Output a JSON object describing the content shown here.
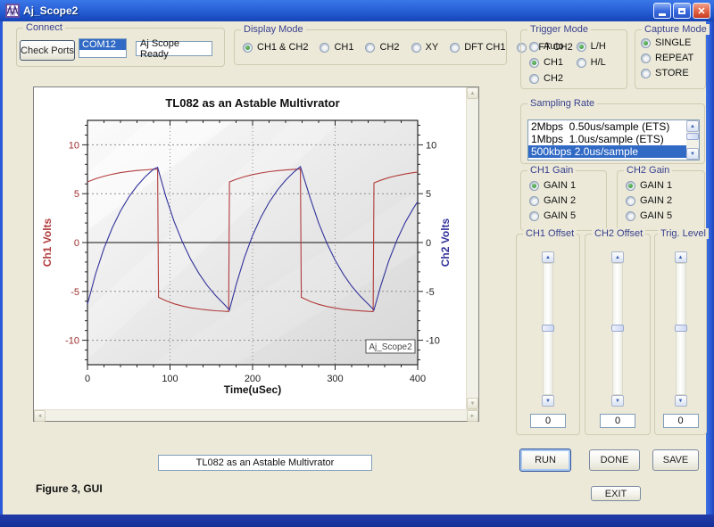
{
  "window": {
    "title": "Aj_Scope2",
    "controls": {
      "minimize": "minimize",
      "maximize": "maximize",
      "close": "close"
    }
  },
  "connect": {
    "label": "Connect",
    "button_label": "Check Ports",
    "port_selected": "COM12",
    "status_text": "Aj Scope Ready"
  },
  "display_mode": {
    "label": "Display Mode",
    "options": [
      {
        "label": "CH1 & CH2",
        "selected": true
      },
      {
        "label": "CH1",
        "selected": false
      },
      {
        "label": "CH2",
        "selected": false
      },
      {
        "label": "XY",
        "selected": false
      },
      {
        "label": "DFT CH1",
        "selected": false
      },
      {
        "label": "DFT CH2",
        "selected": false
      }
    ]
  },
  "trigger_mode": {
    "label": "Trigger Mode",
    "options": [
      {
        "label": "Auto",
        "selected": false
      },
      {
        "label": "CH1",
        "selected": true
      },
      {
        "label": "CH2",
        "selected": false
      }
    ],
    "edge_options": [
      {
        "label": "L/H",
        "selected": true
      },
      {
        "label": "H/L",
        "selected": false
      }
    ]
  },
  "capture_mode": {
    "label": "Capture Mode",
    "options": [
      {
        "label": "SINGLE",
        "selected": true
      },
      {
        "label": "REPEAT",
        "selected": false
      },
      {
        "label": "STORE",
        "selected": false
      }
    ]
  },
  "sampling_rate": {
    "label": "Sampling Rate",
    "options": [
      "2Mbps  0.50us/sample (ETS)",
      "1Mbps  1.0us/sample (ETS)",
      "500kbps 2.0us/sample"
    ],
    "selected_index": 2
  },
  "ch1_gain": {
    "label": "CH1 Gain",
    "options": [
      {
        "label": "GAIN 1",
        "selected": true
      },
      {
        "label": "GAIN 2",
        "selected": false
      },
      {
        "label": "GAIN 5",
        "selected": false
      }
    ]
  },
  "ch2_gain": {
    "label": "CH2 Gain",
    "options": [
      {
        "label": "GAIN 1",
        "selected": true
      },
      {
        "label": "GAIN 2",
        "selected": false
      },
      {
        "label": "GAIN 5",
        "selected": false
      }
    ]
  },
  "sliders": [
    {
      "label": "CH1 Offset",
      "value": "0"
    },
    {
      "label": "CH2 Offset",
      "value": "0"
    },
    {
      "label": "Trig. Level",
      "value": "0"
    }
  ],
  "actions": {
    "run_label": "RUN",
    "done_label": "DONE",
    "save_label": "SAVE",
    "exit_label": "EXIT"
  },
  "footer": {
    "title_field_value": "TL082 as an Astable Multivrator",
    "caption": "Figure 3, GUI"
  },
  "chart_data": {
    "type": "line",
    "title": "TL082 as an Astable Multivrator",
    "xlabel": "Time(uSec)",
    "ylabel_left": "Ch1 Volts",
    "ylabel_right": "Ch2 Volts",
    "legend": "Aj_Scope2",
    "xlim": [
      0,
      400
    ],
    "ylim": [
      -12.5,
      12.5
    ],
    "xticks": [
      0,
      100,
      200,
      300,
      400
    ],
    "yticks": [
      -10,
      -5,
      0,
      5,
      10
    ],
    "grid": true,
    "axis_colors": {
      "left": "#a03030",
      "right": "#222222"
    },
    "series": [
      {
        "name": "Ch1",
        "color": "#b23b3b",
        "points": [
          [
            0,
            6.2
          ],
          [
            10,
            6.53
          ],
          [
            20,
            6.79
          ],
          [
            30,
            6.99
          ],
          [
            40,
            7.15
          ],
          [
            50,
            7.27
          ],
          [
            60,
            7.37
          ],
          [
            70,
            7.44
          ],
          [
            80,
            7.5
          ],
          [
            85,
            7.52
          ],
          [
            86,
            -5.6
          ],
          [
            95,
            -5.96
          ],
          [
            105,
            -6.27
          ],
          [
            115,
            -6.5
          ],
          [
            125,
            -6.68
          ],
          [
            135,
            -6.8
          ],
          [
            145,
            -6.9
          ],
          [
            155,
            -6.98
          ],
          [
            165,
            -7.03
          ],
          [
            171,
            -7.06
          ],
          [
            172,
            6.2
          ],
          [
            180,
            6.47
          ],
          [
            190,
            6.74
          ],
          [
            200,
            6.95
          ],
          [
            210,
            7.12
          ],
          [
            220,
            7.25
          ],
          [
            230,
            7.35
          ],
          [
            240,
            7.43
          ],
          [
            250,
            7.49
          ],
          [
            258,
            7.53
          ],
          [
            259,
            -5.6
          ],
          [
            270,
            -6.03
          ],
          [
            280,
            -6.32
          ],
          [
            290,
            -6.54
          ],
          [
            300,
            -6.7
          ],
          [
            310,
            -6.83
          ],
          [
            320,
            -6.92
          ],
          [
            330,
            -6.99
          ],
          [
            340,
            -7.04
          ],
          [
            346,
            -7.06
          ],
          [
            347,
            6.1
          ],
          [
            355,
            6.37
          ],
          [
            365,
            6.64
          ],
          [
            375,
            6.85
          ],
          [
            385,
            7.02
          ],
          [
            395,
            7.15
          ],
          [
            400,
            7.2
          ]
        ]
      },
      {
        "name": "Ch2",
        "color": "#32329b",
        "points": [
          [
            0,
            -6.3
          ],
          [
            10,
            -3.16
          ],
          [
            20,
            -0.6
          ],
          [
            30,
            1.51
          ],
          [
            40,
            3.23
          ],
          [
            50,
            4.64
          ],
          [
            60,
            5.79
          ],
          [
            70,
            6.74
          ],
          [
            80,
            7.51
          ],
          [
            85,
            7.7
          ],
          [
            95,
            4.68
          ],
          [
            105,
            2.15
          ],
          [
            115,
            0.06
          ],
          [
            125,
            -1.71
          ],
          [
            135,
            -3.17
          ],
          [
            145,
            -4.39
          ],
          [
            155,
            -5.4
          ],
          [
            165,
            -6.26
          ],
          [
            172,
            -6.9
          ],
          [
            180,
            -4.34
          ],
          [
            190,
            -1.56
          ],
          [
            200,
            0.72
          ],
          [
            210,
            2.58
          ],
          [
            220,
            4.11
          ],
          [
            230,
            5.36
          ],
          [
            240,
            6.38
          ],
          [
            250,
            7.22
          ],
          [
            258,
            7.77
          ],
          [
            270,
            4.49
          ],
          [
            280,
            2.0
          ],
          [
            290,
            -0.08
          ],
          [
            300,
            -1.81
          ],
          [
            310,
            -3.26
          ],
          [
            320,
            -4.46
          ],
          [
            330,
            -5.46
          ],
          [
            340,
            -6.3
          ],
          [
            347,
            -6.9
          ],
          [
            355,
            -4.5
          ],
          [
            365,
            -1.88
          ],
          [
            375,
            0.28
          ],
          [
            385,
            2.07
          ],
          [
            395,
            3.54
          ],
          [
            400,
            4.18
          ]
        ]
      }
    ]
  }
}
